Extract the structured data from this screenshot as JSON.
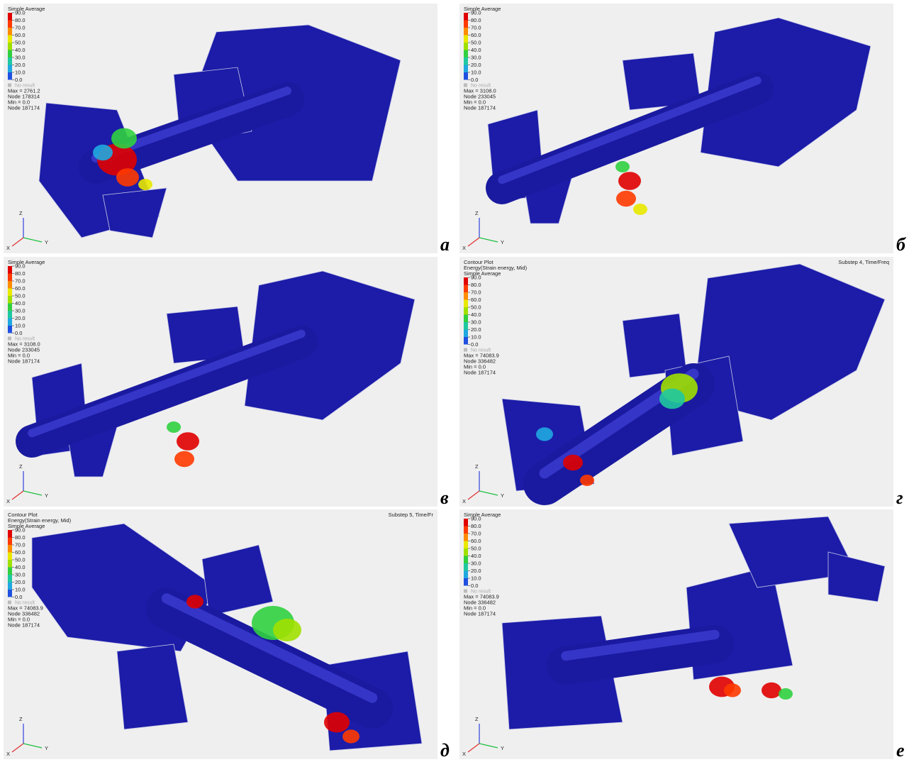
{
  "panels": [
    {
      "label": "а",
      "header": [],
      "legend": {
        "title": "Simple Average",
        "ticks": [
          "90.0",
          "80.0",
          "70.0",
          "60.0",
          "50.0",
          "40.0",
          "30.0",
          "20.0",
          "10.0",
          "0.0"
        ],
        "no_result": "No result"
      },
      "stats": [
        "Max = 2761.2",
        "Node 178314",
        "Min = 0.0",
        "Node 187174"
      ],
      "axes": [
        "Z",
        "Y",
        "X"
      ]
    },
    {
      "label": "б",
      "header": [],
      "legend": {
        "title": "Simple Average",
        "ticks": [
          "90.0",
          "80.0",
          "70.0",
          "60.0",
          "50.0",
          "40.0",
          "30.0",
          "20.0",
          "10.0",
          "0.0"
        ],
        "no_result": "No result"
      },
      "stats": [
        "Max = 3108.0",
        "Node 233045",
        "Min = 0.0",
        "Node 187174"
      ],
      "axes": [
        "Z",
        "Y",
        "X"
      ]
    },
    {
      "label": "в",
      "header": [],
      "legend": {
        "title": "Simple Average",
        "ticks": [
          "90.0",
          "80.0",
          "70.0",
          "60.0",
          "50.0",
          "40.0",
          "30.0",
          "20.0",
          "10.0",
          "0.0"
        ],
        "no_result": "No result"
      },
      "stats": [
        "Max = 3108.0",
        "Node 233045",
        "Min = 0.0",
        "Node 187174"
      ],
      "axes": [
        "Z",
        "Y",
        "X"
      ]
    },
    {
      "label": "г",
      "header": [
        "Contour Plot",
        "Energy(Strain energy, Mid)"
      ],
      "corner": "Substep 4, Time/Freq",
      "legend": {
        "title": "Simple Average",
        "ticks": [
          "90.0",
          "80.0",
          "70.0",
          "60.0",
          "50.0",
          "40.0",
          "30.0",
          "20.0",
          "10.0",
          "0.0"
        ],
        "no_result": "No result"
      },
      "stats": [
        "Max = 74083.9",
        "Node 336482",
        "Min = 0.0",
        "Node 187174"
      ],
      "axes": [
        "Z",
        "Y",
        "X"
      ]
    },
    {
      "label": "д",
      "header": [
        "Contour Plot",
        "Energy(Strain energy, Mid)"
      ],
      "corner": "Substep 5, Time/Fr",
      "legend": {
        "title": "Simple Average",
        "ticks": [
          "90.0",
          "80.0",
          "70.0",
          "60.0",
          "50.0",
          "40.0",
          "30.0",
          "20.0",
          "10.0",
          "0.0"
        ],
        "no_result": "No result"
      },
      "stats": [
        "Max = 74083.9",
        "Node 336482",
        "Min = 0.0",
        "Node 187174"
      ],
      "axes": [
        "Z",
        "Y",
        "X"
      ]
    },
    {
      "label": "е",
      "header": [],
      "legend": {
        "title": "Simple Average",
        "ticks": [
          "90.0",
          "80.0",
          "70.0",
          "60.0",
          "50.0",
          "40.0",
          "30.0",
          "20.0",
          "10.0",
          "0.0"
        ],
        "no_result": "No result"
      },
      "stats": [
        "Max = 74083.9",
        "Node 336482",
        "Min = 0.0",
        "Node 187174"
      ],
      "axes": [
        "Z",
        "Y",
        "X"
      ]
    }
  ]
}
